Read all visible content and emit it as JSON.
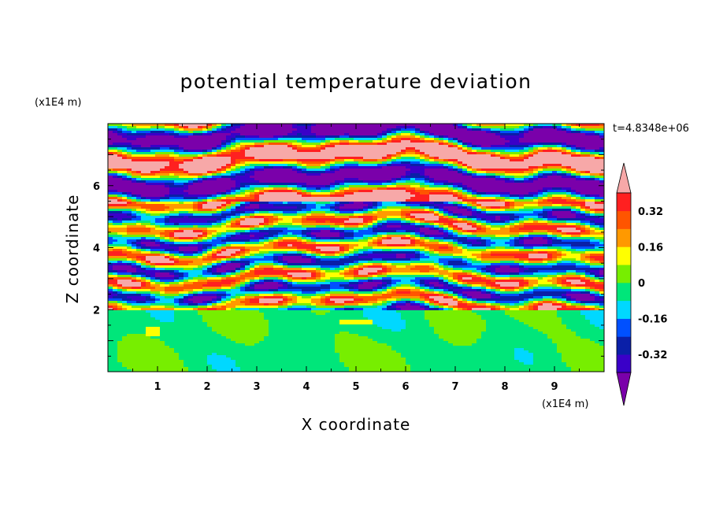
{
  "chart_data": {
    "type": "heatmap",
    "title": "potential temperature deviation",
    "xlabel": "X coordinate",
    "ylabel": "Z coordinate",
    "x_unit": "(x1E4 m)",
    "y_unit": "(x1E4 m)",
    "time_label": "t=4.8348e+06",
    "xlim": [
      0,
      10
    ],
    "ylim": [
      0,
      8
    ],
    "x_ticks": [
      1,
      2,
      3,
      4,
      5,
      6,
      7,
      8,
      9
    ],
    "y_ticks": [
      2,
      4,
      6
    ],
    "grid": false,
    "colorbar": {
      "levels": [
        -0.4,
        -0.32,
        -0.24,
        -0.16,
        -0.08,
        0,
        0.08,
        0.16,
        0.24,
        0.32,
        0.4
      ],
      "colors": [
        "#7a00aa",
        "#3a00c8",
        "#0a1fa8",
        "#0050ff",
        "#00d8ff",
        "#00e67a",
        "#77ee00",
        "#ffff00",
        "#ff9900",
        "#ff5500",
        "#ff2020",
        "#f7a8a8"
      ],
      "tick_labels": [
        "0.32",
        "0.16",
        "0",
        "-0.16",
        "-0.32"
      ],
      "tick_values": [
        0.32,
        0.16,
        0,
        -0.16,
        -0.32
      ],
      "extend": "both"
    },
    "regions": [
      {
        "zrange": [
          0,
          2
        ],
        "dominant_value": -0.04
      },
      {
        "zrange": [
          2,
          5.5
        ],
        "dominant_value": "mixed"
      },
      {
        "zrange": [
          5.5,
          8
        ],
        "dominant_value": "alternating bands"
      }
    ]
  }
}
